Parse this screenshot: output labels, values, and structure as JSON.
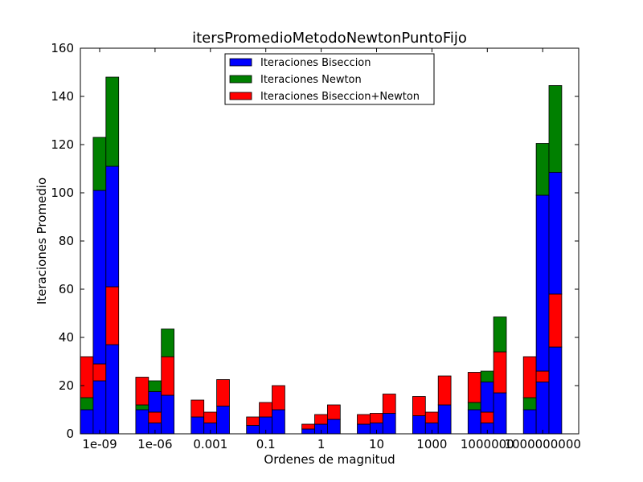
{
  "chart_data": {
    "type": "bar",
    "title": "itersPromedioMetodoNewtonPuntoFijo",
    "xlabel": "Ordenes de magnitud",
    "ylabel": "Iteraciones Promedio",
    "ylim": [
      0,
      160
    ],
    "yticks": [
      "0",
      "20",
      "40",
      "60",
      "80",
      "100",
      "120",
      "140",
      "160"
    ],
    "categories": [
      "1e-09",
      "1e-06",
      "0.001",
      "0.1",
      "1",
      "10",
      "1000",
      "1000000",
      "1000000000"
    ],
    "bars_per_group": 3,
    "legend": {
      "position": "top-center",
      "entries": [
        {
          "label": "Iteraciones Biseccion",
          "color": "#0000ff"
        },
        {
          "label": "Iteraciones Newton",
          "color": "#008000"
        },
        {
          "label": "Iteraciones Biseccion+Newton",
          "color": "#ff0000"
        }
      ]
    },
    "colors": {
      "biseccion": "#0000ff",
      "newton": "#008000",
      "biseccion_newton": "#ff0000"
    },
    "bars": [
      {
        "group": 0,
        "slot": 0,
        "segments": [
          {
            "series": "biseccion",
            "value": 10
          },
          {
            "series": "newton",
            "value": 5
          },
          {
            "series": "biseccion_newton",
            "value": 17
          }
        ]
      },
      {
        "group": 0,
        "slot": 1,
        "segments": [
          {
            "series": "biseccion",
            "value": 22
          },
          {
            "series": "biseccion_newton",
            "value": 7
          },
          {
            "series": "biseccion",
            "value": 72
          },
          {
            "series": "newton",
            "value": 22
          }
        ]
      },
      {
        "group": 0,
        "slot": 2,
        "segments": [
          {
            "series": "biseccion",
            "value": 37
          },
          {
            "series": "biseccion_newton",
            "value": 24
          },
          {
            "series": "biseccion",
            "value": 50
          },
          {
            "series": "newton",
            "value": 37
          }
        ]
      },
      {
        "group": 1,
        "slot": 0,
        "segments": [
          {
            "series": "biseccion",
            "value": 10
          },
          {
            "series": "newton",
            "value": 2
          },
          {
            "series": "biseccion_newton",
            "value": 11.5
          }
        ]
      },
      {
        "group": 1,
        "slot": 1,
        "segments": [
          {
            "series": "biseccion",
            "value": 4.5
          },
          {
            "series": "biseccion_newton",
            "value": 4.5
          },
          {
            "series": "biseccion",
            "value": 8.5
          },
          {
            "series": "newton",
            "value": 4.5
          }
        ]
      },
      {
        "group": 1,
        "slot": 2,
        "segments": [
          {
            "series": "biseccion",
            "value": 16
          },
          {
            "series": "biseccion_newton",
            "value": 16
          },
          {
            "series": "newton",
            "value": 11.5
          }
        ]
      },
      {
        "group": 2,
        "slot": 0,
        "segments": [
          {
            "series": "biseccion",
            "value": 7
          },
          {
            "series": "biseccion_newton",
            "value": 7
          }
        ]
      },
      {
        "group": 2,
        "slot": 1,
        "segments": [
          {
            "series": "biseccion",
            "value": 4.5
          },
          {
            "series": "biseccion_newton",
            "value": 4.5
          }
        ]
      },
      {
        "group": 2,
        "slot": 2,
        "segments": [
          {
            "series": "biseccion",
            "value": 11.5
          },
          {
            "series": "biseccion_newton",
            "value": 11
          }
        ]
      },
      {
        "group": 3,
        "slot": 0,
        "segments": [
          {
            "series": "biseccion",
            "value": 3.5
          },
          {
            "series": "biseccion_newton",
            "value": 3.5
          }
        ]
      },
      {
        "group": 3,
        "slot": 1,
        "segments": [
          {
            "series": "biseccion",
            "value": 7
          },
          {
            "series": "biseccion_newton",
            "value": 6
          }
        ]
      },
      {
        "group": 3,
        "slot": 2,
        "segments": [
          {
            "series": "biseccion",
            "value": 10
          },
          {
            "series": "biseccion_newton",
            "value": 10
          }
        ]
      },
      {
        "group": 4,
        "slot": 0,
        "segments": [
          {
            "series": "biseccion",
            "value": 2
          },
          {
            "series": "biseccion_newton",
            "value": 2
          }
        ]
      },
      {
        "group": 4,
        "slot": 1,
        "segments": [
          {
            "series": "biseccion",
            "value": 4
          },
          {
            "series": "biseccion_newton",
            "value": 4
          }
        ]
      },
      {
        "group": 4,
        "slot": 2,
        "segments": [
          {
            "series": "biseccion",
            "value": 6
          },
          {
            "series": "biseccion_newton",
            "value": 6
          }
        ]
      },
      {
        "group": 5,
        "slot": 0,
        "segments": [
          {
            "series": "biseccion",
            "value": 4
          },
          {
            "series": "biseccion_newton",
            "value": 4
          }
        ]
      },
      {
        "group": 5,
        "slot": 1,
        "segments": [
          {
            "series": "biseccion",
            "value": 4.5
          },
          {
            "series": "biseccion_newton",
            "value": 4
          }
        ]
      },
      {
        "group": 5,
        "slot": 2,
        "segments": [
          {
            "series": "biseccion",
            "value": 8.5
          },
          {
            "series": "biseccion_newton",
            "value": 8
          }
        ]
      },
      {
        "group": 6,
        "slot": 0,
        "segments": [
          {
            "series": "biseccion",
            "value": 7.5
          },
          {
            "series": "biseccion_newton",
            "value": 8
          }
        ]
      },
      {
        "group": 6,
        "slot": 1,
        "segments": [
          {
            "series": "biseccion",
            "value": 4.5
          },
          {
            "series": "biseccion_newton",
            "value": 4.5
          }
        ]
      },
      {
        "group": 6,
        "slot": 2,
        "segments": [
          {
            "series": "biseccion",
            "value": 12
          },
          {
            "series": "biseccion_newton",
            "value": 12
          }
        ]
      },
      {
        "group": 7,
        "slot": 0,
        "segments": [
          {
            "series": "biseccion",
            "value": 10
          },
          {
            "series": "newton",
            "value": 3
          },
          {
            "series": "biseccion_newton",
            "value": 12.5
          }
        ]
      },
      {
        "group": 7,
        "slot": 1,
        "segments": [
          {
            "series": "biseccion",
            "value": 4.5
          },
          {
            "series": "biseccion_newton",
            "value": 4.5
          },
          {
            "series": "biseccion",
            "value": 12.5
          },
          {
            "series": "newton",
            "value": 4.5
          }
        ]
      },
      {
        "group": 7,
        "slot": 2,
        "segments": [
          {
            "series": "biseccion",
            "value": 17
          },
          {
            "series": "biseccion_newton",
            "value": 17
          },
          {
            "series": "newton",
            "value": 14.5
          }
        ]
      },
      {
        "group": 8,
        "slot": 0,
        "segments": [
          {
            "series": "biseccion",
            "value": 10
          },
          {
            "series": "newton",
            "value": 5
          },
          {
            "series": "biseccion_newton",
            "value": 17
          }
        ]
      },
      {
        "group": 8,
        "slot": 1,
        "segments": [
          {
            "series": "biseccion",
            "value": 21.5
          },
          {
            "series": "biseccion_newton",
            "value": 4.5
          },
          {
            "series": "biseccion",
            "value": 73
          },
          {
            "series": "newton",
            "value": 21.5
          }
        ]
      },
      {
        "group": 8,
        "slot": 2,
        "segments": [
          {
            "series": "biseccion",
            "value": 36
          },
          {
            "series": "biseccion_newton",
            "value": 22
          },
          {
            "series": "biseccion",
            "value": 50.5
          },
          {
            "series": "newton",
            "value": 36
          }
        ]
      }
    ]
  }
}
